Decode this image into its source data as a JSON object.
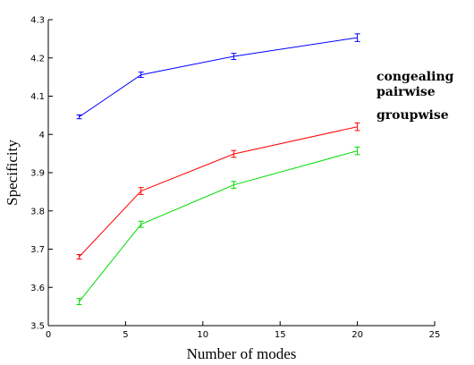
{
  "chart_data": {
    "type": "line",
    "title": "",
    "xlabel": "Number of modes",
    "ylabel": "Specificity",
    "xlim": [
      0,
      25
    ],
    "ylim": [
      3.5,
      4.3
    ],
    "xticks": [
      0,
      5,
      10,
      15,
      20,
      25
    ],
    "yticks": [
      3.5,
      3.6,
      3.7,
      3.8,
      3.9,
      4,
      4.1,
      4.2,
      4.3
    ],
    "ytick_labels": [
      "3.5",
      "3.6",
      "3.7",
      "3.8",
      "3.9",
      "4",
      "4.1",
      "4.2",
      "4.3"
    ],
    "grid": false,
    "legend_position": "right",
    "error_bars": true,
    "x": [
      2,
      6,
      12,
      20
    ],
    "series": [
      {
        "name": "congealing",
        "color": "#0000ff",
        "values": [
          4.046,
          4.156,
          4.204,
          4.253
        ],
        "errors": [
          0.005,
          0.007,
          0.008,
          0.01
        ]
      },
      {
        "name": "pairwise",
        "color": "#ff0000",
        "values": [
          3.68,
          3.852,
          3.949,
          4.02
        ],
        "errors": [
          0.006,
          0.009,
          0.009,
          0.01
        ]
      },
      {
        "name": "groupwise",
        "color": "#00dd00",
        "values": [
          3.563,
          3.765,
          3.868,
          3.957
        ],
        "errors": [
          0.008,
          0.008,
          0.009,
          0.01
        ]
      }
    ]
  }
}
